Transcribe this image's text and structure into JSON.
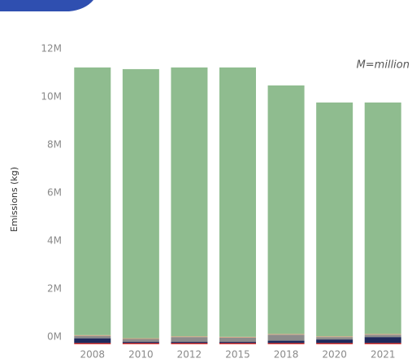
{
  "chart_data": {
    "type": "bar",
    "stacked": true,
    "y_label": "Emissions (kg)",
    "annotation": "M=million",
    "categories": [
      "2008",
      "2010",
      "2012",
      "2015",
      "2018",
      "2020",
      "2021"
    ],
    "series": [
      {
        "color": "#e0413a",
        "values": [
          0.05,
          0.05,
          0.05,
          0.05,
          0.05,
          0.05,
          0.05
        ]
      },
      {
        "color": "#1f2a5c",
        "values": [
          0.2,
          0.05,
          0.05,
          0.05,
          0.1,
          0.15,
          0.25
        ]
      },
      {
        "color": "#8c8c8c",
        "values": [
          0.1,
          0.12,
          0.2,
          0.18,
          0.25,
          0.1,
          0.1
        ]
      },
      {
        "color": "#d9a07a",
        "values": [
          0.03,
          0.03,
          0.03,
          0.03,
          0.03,
          0.03,
          0.03
        ]
      },
      {
        "color": "#8fbc8f",
        "values": [
          11.15,
          11.21,
          11.2,
          11.22,
          10.35,
          9.74,
          9.64
        ]
      }
    ],
    "ylim": [
      0,
      12
    ],
    "yticks": [
      {
        "value": 0,
        "label": "0M"
      },
      {
        "value": 2,
        "label": "2M"
      },
      {
        "value": 4,
        "label": "4M"
      },
      {
        "value": 6,
        "label": "6M"
      },
      {
        "value": 8,
        "label": "8M"
      },
      {
        "value": 10,
        "label": "10M"
      },
      {
        "value": 12,
        "label": "12M"
      }
    ],
    "grid": false
  }
}
